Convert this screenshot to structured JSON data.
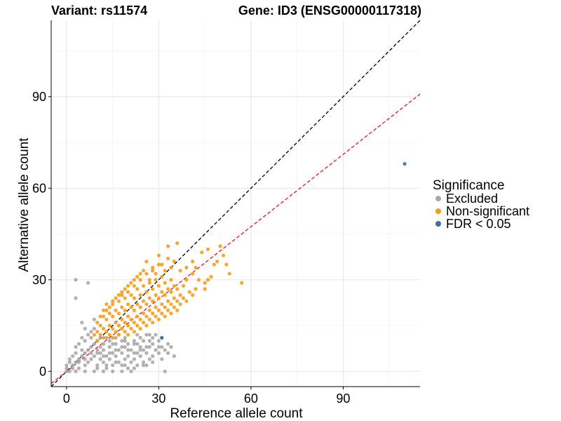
{
  "chart_data": {
    "type": "scatter",
    "title_left": "Variant: rs11574",
    "title_right": "Gene: ID3 (ENSG00000117318)",
    "xlabel": "Reference allele count",
    "ylabel": "Alternative allele count",
    "xlim": [
      -5,
      115
    ],
    "ylim": [
      -5,
      115
    ],
    "x_ticks": [
      0,
      30,
      60,
      90
    ],
    "y_ticks": [
      0,
      30,
      60,
      90
    ],
    "grid": true,
    "legend_title": "Significance",
    "legend_position": "right",
    "reference_lines": [
      {
        "type": "diagonal",
        "slope": 1,
        "color": "#000000",
        "style": "dashed"
      },
      {
        "type": "fit",
        "slope": 0.79,
        "color": "#e41a1c",
        "style": "dashed"
      }
    ],
    "series": [
      {
        "name": "Excluded",
        "color": "#a9a9a9",
        "points": [
          [
            0,
            0
          ],
          [
            0,
            1
          ],
          [
            0,
            2
          ],
          [
            1,
            3
          ],
          [
            1,
            4
          ],
          [
            2,
            5
          ],
          [
            2,
            2
          ],
          [
            3,
            3
          ],
          [
            3,
            6
          ],
          [
            4,
            4
          ],
          [
            4,
            1
          ],
          [
            5,
            5
          ],
          [
            5,
            7
          ],
          [
            6,
            6
          ],
          [
            6,
            2
          ],
          [
            7,
            7
          ],
          [
            7,
            3
          ],
          [
            8,
            8
          ],
          [
            8,
            4
          ],
          [
            9,
            9
          ],
          [
            9,
            5
          ],
          [
            10,
            6
          ],
          [
            10,
            2
          ],
          [
            11,
            8
          ],
          [
            11,
            4
          ],
          [
            12,
            3
          ],
          [
            12,
            7
          ],
          [
            13,
            5
          ],
          [
            13,
            1
          ],
          [
            14,
            4
          ],
          [
            14,
            8
          ],
          [
            15,
            6
          ],
          [
            15,
            2
          ],
          [
            16,
            9
          ],
          [
            16,
            5
          ],
          [
            17,
            3
          ],
          [
            17,
            7
          ],
          [
            18,
            6
          ],
          [
            18,
            2
          ],
          [
            19,
            8
          ],
          [
            19,
            4
          ],
          [
            20,
            5
          ],
          [
            20,
            1
          ],
          [
            21,
            7
          ],
          [
            21,
            3
          ],
          [
            22,
            9
          ],
          [
            22,
            4
          ],
          [
            23,
            6
          ],
          [
            23,
            2
          ],
          [
            24,
            8
          ],
          [
            24,
            5
          ],
          [
            25,
            3
          ],
          [
            25,
            7
          ],
          [
            26,
            6
          ],
          [
            26,
            2
          ],
          [
            27,
            4
          ],
          [
            27,
            8
          ],
          [
            28,
            5
          ],
          [
            29,
            7
          ],
          [
            30,
            6
          ],
          [
            31,
            8
          ],
          [
            32,
            7
          ],
          [
            33,
            9
          ],
          [
            34,
            8
          ],
          [
            3,
            24
          ],
          [
            3,
            30
          ],
          [
            7,
            29
          ],
          [
            32,
            0
          ],
          [
            4,
            9
          ],
          [
            6,
            10
          ],
          [
            5,
            11
          ],
          [
            8,
            13
          ],
          [
            9,
            14
          ],
          [
            3,
            8
          ],
          [
            12,
            9
          ],
          [
            14,
            10
          ],
          [
            16,
            11
          ],
          [
            18,
            10
          ],
          [
            20,
            9
          ],
          [
            22,
            10
          ],
          [
            24,
            11
          ],
          [
            26,
            12
          ],
          [
            28,
            11
          ],
          [
            30,
            10
          ],
          [
            12,
            0
          ],
          [
            15,
            0
          ],
          [
            18,
            0
          ],
          [
            21,
            0
          ],
          [
            9,
            0
          ],
          [
            6,
            0
          ],
          [
            3,
            0
          ],
          [
            1,
            0
          ],
          [
            10,
            10
          ],
          [
            13,
            11
          ],
          [
            17,
            12
          ],
          [
            19,
            11
          ],
          [
            23,
            12
          ],
          [
            25,
            10
          ],
          [
            27,
            12
          ],
          [
            29,
            12
          ],
          [
            11,
            11
          ],
          [
            7,
            12
          ],
          [
            8,
            11
          ],
          [
            6,
            14
          ],
          [
            9,
            17
          ],
          [
            5,
            16
          ],
          [
            2,
            1
          ],
          [
            4,
            3
          ],
          [
            6,
            4
          ],
          [
            8,
            6
          ],
          [
            10,
            7
          ],
          [
            12,
            5
          ],
          [
            14,
            6
          ],
          [
            16,
            7
          ],
          [
            18,
            8
          ],
          [
            20,
            7
          ],
          [
            22,
            6
          ],
          [
            24,
            7
          ],
          [
            26,
            8
          ],
          [
            28,
            9
          ],
          [
            30,
            8
          ],
          [
            10,
            1
          ],
          [
            13,
            2
          ],
          [
            16,
            3
          ],
          [
            19,
            2
          ],
          [
            22,
            1
          ],
          [
            25,
            2
          ],
          [
            28,
            3
          ],
          [
            31,
            4
          ],
          [
            33,
            6
          ],
          [
            35,
            5
          ],
          [
            11,
            6
          ],
          [
            15,
            9
          ],
          [
            19,
            10
          ],
          [
            23,
            9
          ],
          [
            27,
            10
          ],
          [
            31,
            11
          ]
        ]
      },
      {
        "name": "Non-significant",
        "color": "#f89c1c",
        "points": [
          [
            10,
            10
          ],
          [
            11,
            12
          ],
          [
            11,
            15
          ],
          [
            12,
            11
          ],
          [
            12,
            14
          ],
          [
            12,
            18
          ],
          [
            13,
            13
          ],
          [
            13,
            17
          ],
          [
            13,
            20
          ],
          [
            14,
            12
          ],
          [
            14,
            15
          ],
          [
            14,
            19
          ],
          [
            15,
            11
          ],
          [
            15,
            14
          ],
          [
            15,
            18
          ],
          [
            15,
            22
          ],
          [
            16,
            13
          ],
          [
            16,
            16
          ],
          [
            16,
            20
          ],
          [
            17,
            12
          ],
          [
            17,
            15
          ],
          [
            17,
            19
          ],
          [
            17,
            23
          ],
          [
            18,
            14
          ],
          [
            18,
            17
          ],
          [
            18,
            21
          ],
          [
            18,
            25
          ],
          [
            19,
            13
          ],
          [
            19,
            16
          ],
          [
            19,
            20
          ],
          [
            19,
            24
          ],
          [
            20,
            12
          ],
          [
            20,
            15
          ],
          [
            20,
            18
          ],
          [
            20,
            22
          ],
          [
            20,
            26
          ],
          [
            21,
            14
          ],
          [
            21,
            17
          ],
          [
            21,
            21
          ],
          [
            21,
            25
          ],
          [
            22,
            13
          ],
          [
            22,
            16
          ],
          [
            22,
            20
          ],
          [
            22,
            24
          ],
          [
            22,
            28
          ],
          [
            23,
            15
          ],
          [
            23,
            18
          ],
          [
            23,
            22
          ],
          [
            23,
            27
          ],
          [
            24,
            14
          ],
          [
            24,
            17
          ],
          [
            24,
            21
          ],
          [
            24,
            25
          ],
          [
            24,
            30
          ],
          [
            25,
            16
          ],
          [
            25,
            19
          ],
          [
            25,
            23
          ],
          [
            25,
            28
          ],
          [
            26,
            15
          ],
          [
            26,
            18
          ],
          [
            26,
            22
          ],
          [
            26,
            26
          ],
          [
            26,
            32
          ],
          [
            27,
            17
          ],
          [
            27,
            20
          ],
          [
            27,
            24
          ],
          [
            27,
            29
          ],
          [
            28,
            16
          ],
          [
            28,
            19
          ],
          [
            28,
            23
          ],
          [
            28,
            27
          ],
          [
            28,
            33
          ],
          [
            29,
            18
          ],
          [
            29,
            21
          ],
          [
            29,
            25
          ],
          [
            29,
            30
          ],
          [
            30,
            17
          ],
          [
            30,
            20
          ],
          [
            30,
            24
          ],
          [
            30,
            28
          ],
          [
            30,
            35
          ],
          [
            31,
            19
          ],
          [
            31,
            22
          ],
          [
            31,
            26
          ],
          [
            31,
            31
          ],
          [
            32,
            18
          ],
          [
            32,
            21
          ],
          [
            32,
            25
          ],
          [
            32,
            29
          ],
          [
            33,
            20
          ],
          [
            33,
            23
          ],
          [
            33,
            27
          ],
          [
            34,
            19
          ],
          [
            34,
            22
          ],
          [
            34,
            26
          ],
          [
            34,
            30
          ],
          [
            35,
            21
          ],
          [
            35,
            24
          ],
          [
            35,
            28
          ],
          [
            36,
            20
          ],
          [
            36,
            23
          ],
          [
            36,
            27
          ],
          [
            37,
            22
          ],
          [
            37,
            25
          ],
          [
            38,
            24
          ],
          [
            38,
            28
          ],
          [
            39,
            23
          ],
          [
            40,
            26
          ],
          [
            41,
            25
          ],
          [
            42,
            27
          ],
          [
            45,
            27
          ],
          [
            45,
            29
          ],
          [
            46,
            30
          ],
          [
            47,
            31
          ],
          [
            48,
            35
          ],
          [
            50,
            41
          ],
          [
            51,
            38
          ],
          [
            52,
            35
          ],
          [
            53,
            32
          ],
          [
            57,
            29
          ],
          [
            49,
            36
          ],
          [
            46,
            40
          ],
          [
            44,
            39
          ],
          [
            41,
            36
          ],
          [
            39,
            34
          ],
          [
            36,
            42
          ],
          [
            33,
            41
          ],
          [
            30,
            38
          ],
          [
            26,
            36
          ],
          [
            25,
            33
          ],
          [
            23,
            31
          ],
          [
            21,
            29
          ],
          [
            19,
            27
          ],
          [
            17,
            25
          ],
          [
            15,
            23
          ],
          [
            14,
            21
          ],
          [
            13,
            22
          ],
          [
            12,
            20
          ],
          [
            11,
            18
          ],
          [
            10,
            16
          ],
          [
            9,
            12
          ],
          [
            10,
            13
          ],
          [
            16,
            24
          ],
          [
            18,
            26
          ],
          [
            20,
            28
          ],
          [
            22,
            30
          ],
          [
            24,
            32
          ],
          [
            28,
            34
          ],
          [
            32,
            33
          ],
          [
            34,
            34
          ],
          [
            35,
            36
          ],
          [
            37,
            33
          ],
          [
            39,
            30
          ],
          [
            41,
            32
          ],
          [
            43,
            30
          ],
          [
            42,
            34
          ],
          [
            27,
            30
          ],
          [
            29,
            32
          ],
          [
            31,
            35
          ],
          [
            33,
            37
          ]
        ]
      },
      {
        "name": "FDR < 0.05",
        "color": "#3c6fa0",
        "points": [
          [
            110,
            68
          ],
          [
            31,
            11
          ]
        ]
      }
    ]
  }
}
